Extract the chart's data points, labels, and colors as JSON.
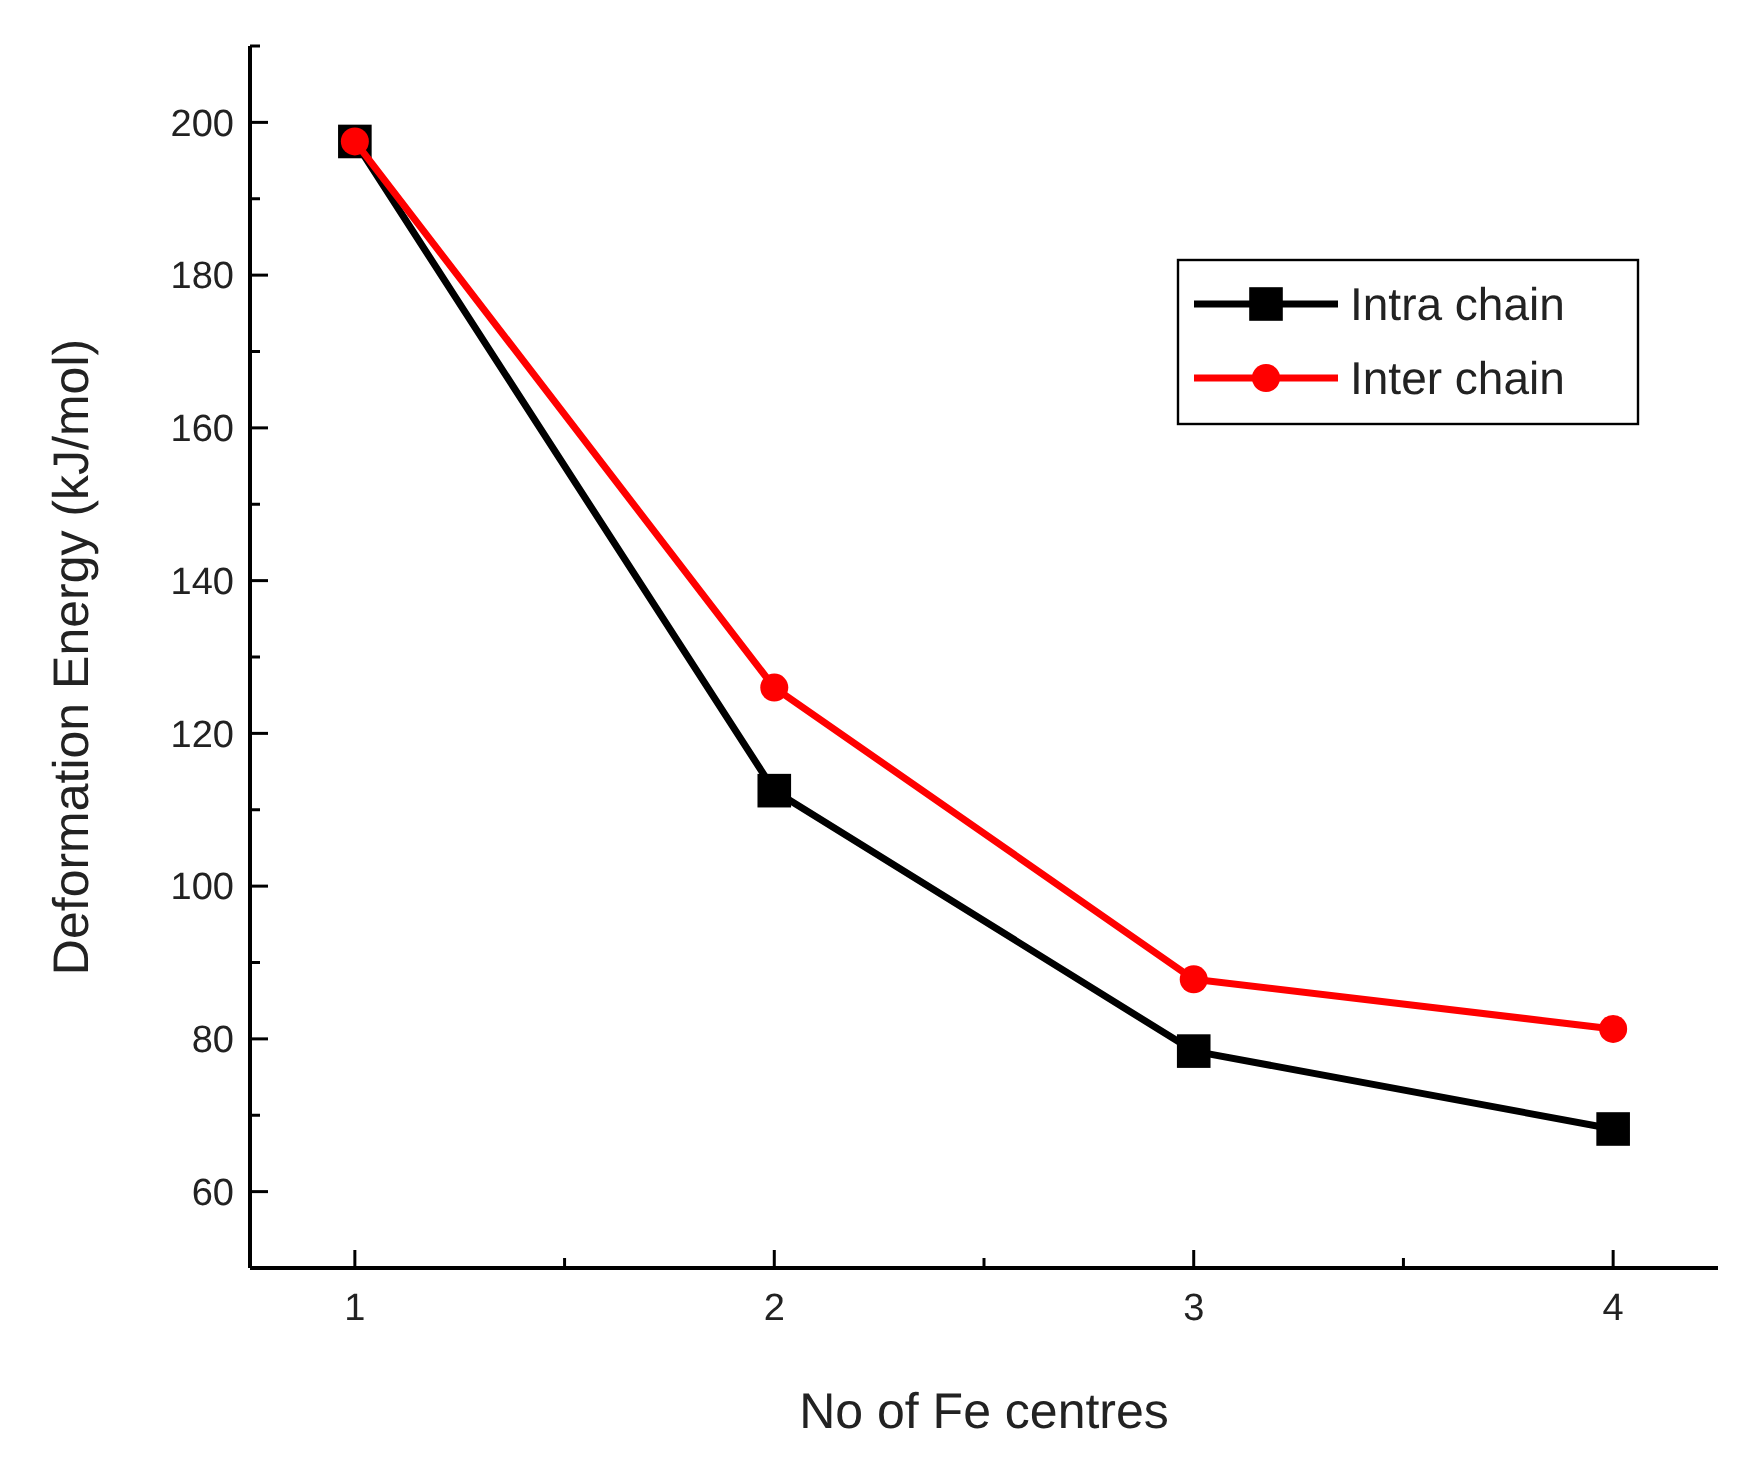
{
  "chart_data": {
    "type": "line",
    "xlabel": "No of Fe centres",
    "ylabel": "Deformation Energy (kJ/mol)",
    "x": [
      1,
      2,
      3,
      4
    ],
    "xlim": [
      0.75,
      4.25
    ],
    "xticks": [
      1,
      {
        "value": 1.5,
        "label": null
      },
      2,
      {
        "value": 2.5,
        "label": null
      },
      3,
      {
        "value": 3.5,
        "label": null
      },
      4
    ],
    "ylim": [
      50,
      210
    ],
    "yticks": [
      {
        "value": 50,
        "label": null
      },
      60,
      {
        "value": 70,
        "label": null
      },
      80,
      {
        "value": 90,
        "label": null
      },
      100,
      {
        "value": 110,
        "label": null
      },
      120,
      {
        "value": 130,
        "label": null
      },
      140,
      {
        "value": 150,
        "label": null
      },
      160,
      {
        "value": 170,
        "label": null
      },
      180,
      {
        "value": 190,
        "label": null
      },
      200,
      {
        "value": 210,
        "label": null
      }
    ],
    "grid": false,
    "legend": "top right",
    "line_style": "solid",
    "series": [
      {
        "name": "Intra chain",
        "color": "#000000",
        "marker": "square",
        "values": [
          197.5,
          112.5,
          78.4,
          68.2
        ]
      },
      {
        "name": "Inter chain",
        "color": "#ff0000",
        "marker": "circle",
        "values": [
          197.5,
          126,
          87.8,
          81.3
        ]
      }
    ]
  }
}
